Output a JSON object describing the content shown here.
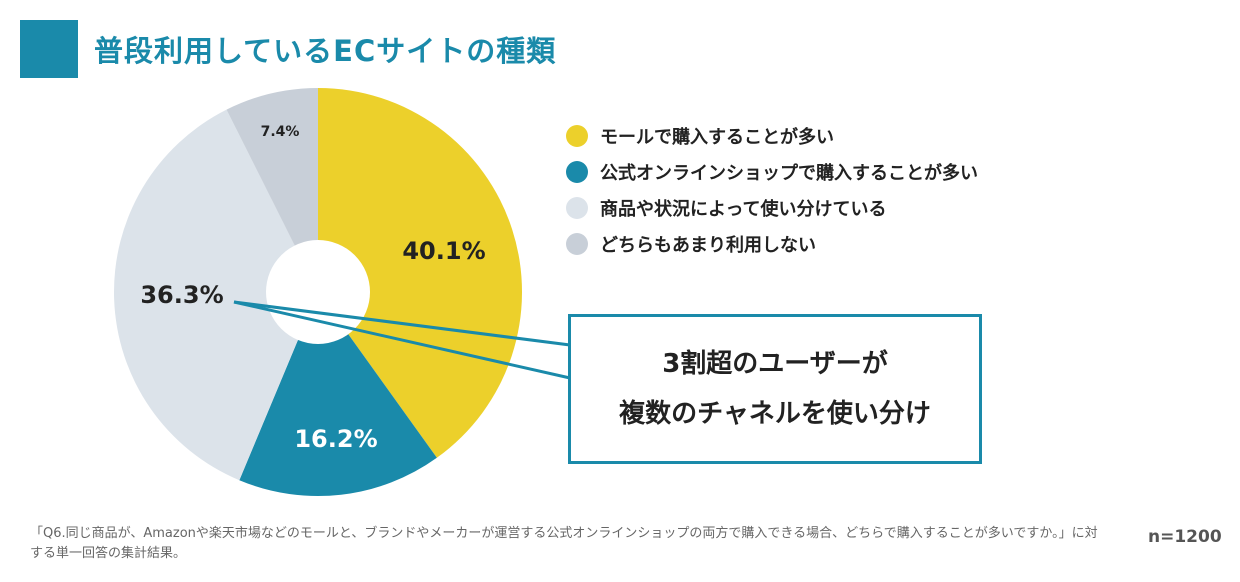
{
  "title": "普段利用しているECサイトの種類",
  "chart_data": {
    "type": "pie",
    "title": "普段利用しているECサイトの種類",
    "slices": [
      {
        "label": "モールで購入することが多い",
        "value": 40.1,
        "display": "40.1%",
        "color": "#ecd02b",
        "label_color": "#222222"
      },
      {
        "label": "公式オンラインショップで購入することが多い",
        "value": 16.2,
        "display": "16.2%",
        "color": "#1a8aaa",
        "label_color": "#ffffff"
      },
      {
        "label": "商品や状況によって使い分けている",
        "value": 36.3,
        "display": "36.3%",
        "color": "#dce3ea",
        "label_color": "#222222"
      },
      {
        "label": "どちらもあまり利用しない",
        "value": 7.4,
        "display": "7.4%",
        "color": "#c8cfd8",
        "label_color": "#222222"
      }
    ],
    "legend_position": "right"
  },
  "callout": {
    "line1": "3割超のユーザーが",
    "line2": "複数のチャネルを使い分け"
  },
  "footnote": "「Q6.同じ商品が、Amazonや楽天市場などのモールと、ブランドやメーカーが運営する公式オンラインショップの両方で購入できる場合、どちらで購入することが多いですか。」に対する単一回答の集計結果。",
  "sample_size": "n=1200",
  "colors": {
    "accent": "#1a8aaa",
    "border": "#1a8aaa"
  }
}
